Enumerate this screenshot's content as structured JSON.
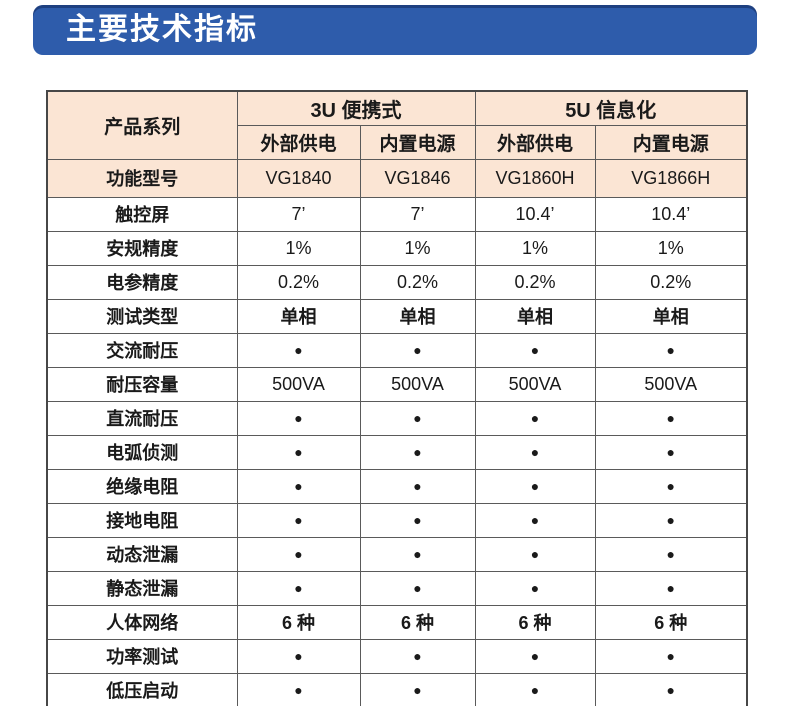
{
  "page": {
    "title": "主要技术指标"
  },
  "colors": {
    "banner_blue": "#2e5cab",
    "banner_top_edge": "#122a5c",
    "header_peach": "#fbe5d4",
    "outer_border": "#474747",
    "inner_border": "#5a5a5a",
    "text": "#1a1a1a",
    "title_text": "#ffffff"
  },
  "table": {
    "corner_label": "产品系列",
    "bullet": "●",
    "groups": [
      {
        "label": "3U  便携式",
        "subcols": [
          "外部供电",
          "内置电源"
        ]
      },
      {
        "label": "5U  信息化",
        "subcols": [
          "外部供电",
          "内置电源"
        ]
      }
    ],
    "rows": [
      {
        "label": "功能型号",
        "highlight": true,
        "values": [
          "VG1840",
          "VG1846",
          "VG1860H",
          "VG1866H"
        ]
      },
      {
        "label": "触控屏",
        "highlight": false,
        "values": [
          "7’",
          "7’",
          "10.4’",
          "10.4’"
        ]
      },
      {
        "label": "安规精度",
        "highlight": false,
        "values": [
          "1%",
          "1%",
          "1%",
          "1%"
        ]
      },
      {
        "label": "电参精度",
        "highlight": false,
        "values": [
          "0.2%",
          "0.2%",
          "0.2%",
          "0.2%"
        ]
      },
      {
        "label": "测试类型",
        "highlight": false,
        "values": [
          "单相",
          "单相",
          "单相",
          "单相"
        ]
      },
      {
        "label": "交流耐压",
        "highlight": false,
        "values": [
          "●",
          "●",
          "●",
          "●"
        ]
      },
      {
        "label": "耐压容量",
        "highlight": false,
        "values": [
          "500VA",
          "500VA",
          "500VA",
          "500VA"
        ]
      },
      {
        "label": "直流耐压",
        "highlight": false,
        "values": [
          "●",
          "●",
          "●",
          "●"
        ]
      },
      {
        "label": "电弧侦测",
        "highlight": false,
        "values": [
          "●",
          "●",
          "●",
          "●"
        ]
      },
      {
        "label": "绝缘电阻",
        "highlight": false,
        "values": [
          "●",
          "●",
          "●",
          "●"
        ]
      },
      {
        "label": "接地电阻",
        "highlight": false,
        "values": [
          "●",
          "●",
          "●",
          "●"
        ]
      },
      {
        "label": "动态泄漏",
        "highlight": false,
        "values": [
          "●",
          "●",
          "●",
          "●"
        ]
      },
      {
        "label": "静态泄漏",
        "highlight": false,
        "values": [
          "●",
          "●",
          "●",
          "●"
        ]
      },
      {
        "label": "人体网络",
        "highlight": false,
        "values": [
          "6 种",
          "6 种",
          "6 种",
          "6 种"
        ]
      },
      {
        "label": "功率测试",
        "highlight": false,
        "values": [
          "●",
          "●",
          "●",
          "●"
        ]
      },
      {
        "label": "低压启动",
        "highlight": false,
        "values": [
          "●",
          "●",
          "●",
          "●"
        ]
      }
    ]
  }
}
